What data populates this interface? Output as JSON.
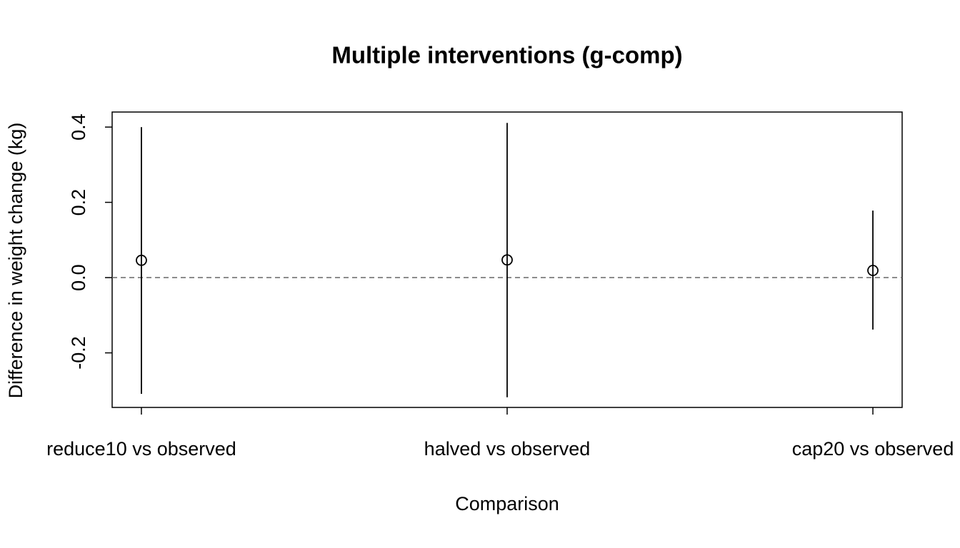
{
  "chart_data": {
    "type": "errorbar",
    "title": "Multiple interventions (g-comp)",
    "xlabel": "Comparison",
    "ylabel": "Difference in weight change (kg)",
    "categories": [
      "reduce10 vs observed",
      "halved vs observed",
      "cap20 vs observed"
    ],
    "values": [
      0.046,
      0.047,
      0.019
    ],
    "lower": [
      -0.309,
      -0.318,
      -0.138
    ],
    "upper": [
      0.4,
      0.411,
      0.178
    ],
    "color": "#000000",
    "reference_line": 0,
    "ylim": [
      -0.345,
      0.44
    ],
    "yticks": [
      -0.2,
      {
        "value": 0,
        "label": "0.0"
      },
      0.2,
      0.4
    ]
  }
}
